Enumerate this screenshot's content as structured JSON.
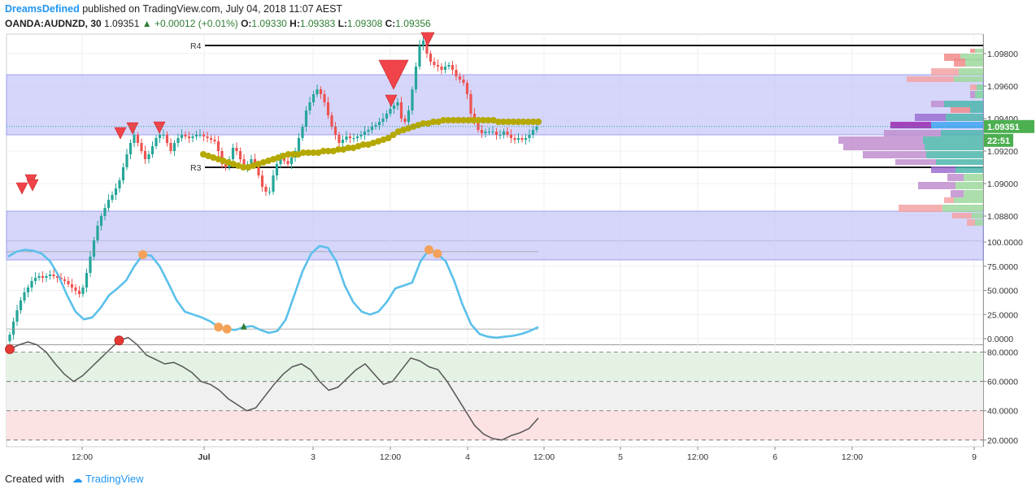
{
  "header": {
    "author": "DreamsDefined",
    "published_text": "published on TradingView.com, July 04, 2018 11:07 AEST",
    "symbol": "OANDA:AUDNZD, 30",
    "last": "1.09351",
    "change": "+0.00012 (+0.01%)",
    "open_label": "O:",
    "open": "1.09330",
    "high_label": "H:",
    "high": "1.09383",
    "low_label": "L:",
    "low": "1.09308",
    "close_label": "C:",
    "close": "1.09356"
  },
  "footer": {
    "created_with": "Created with",
    "brand": "TradingView"
  },
  "colors": {
    "up": "#26a69a",
    "down": "#ef5350",
    "zone": "#c8c8fa",
    "ma": "#b5a800",
    "stoch": "#5bc0eb",
    "osc": "#555555",
    "marker_orange": "#f4a259",
    "marker_red": "#e53935",
    "current_price_bg": "#4caf50"
  },
  "chart_data": [
    {
      "type": "line",
      "title": "",
      "price_axis": {
        "ticks": [
          "1.09800",
          "1.09600",
          "1.09400",
          "1.09200",
          "1.09000",
          "1.08800"
        ],
        "ylim": [
          1.0865,
          1.0992
        ]
      },
      "time_axis": {
        "ticks": [
          "12:00",
          "Jul",
          "3",
          "12:00",
          "4",
          "12:00",
          "5",
          "12:00",
          "6",
          "12:00",
          "9"
        ]
      },
      "current_price": "1.09351",
      "countdown": "22:51",
      "levels": [
        {
          "label": "R4",
          "value": 1.0985
        },
        {
          "label": "R3",
          "value": 1.091
        }
      ],
      "zones": [
        {
          "from": 1.093,
          "to": 1.0967
        },
        {
          "from": 1.0853,
          "to": 1.0883
        }
      ],
      "close_series": [
        1.0807,
        1.0815,
        1.0822,
        1.0828,
        1.0833,
        1.0836,
        1.084,
        1.0842,
        1.0843,
        1.0842,
        1.0843,
        1.0844,
        1.0843,
        1.0842,
        1.0841,
        1.084,
        1.0838,
        1.0836,
        1.0834,
        1.0832,
        1.0836,
        1.0845,
        1.0855,
        1.0865,
        1.0874,
        1.088,
        1.0885,
        1.089,
        1.0893,
        1.0897,
        1.0902,
        1.091,
        1.0918,
        1.0925,
        1.093,
        1.0925,
        1.092,
        1.0915,
        1.0918,
        1.0923,
        1.0928,
        1.093,
        1.093,
        1.0925,
        1.092,
        1.0925,
        1.0928,
        1.093,
        1.0929,
        1.0928,
        1.0929,
        1.093,
        1.093,
        1.0929,
        1.0928,
        1.0927,
        1.0926,
        1.092,
        1.0912,
        1.091,
        1.0915,
        1.0922,
        1.092,
        1.0915,
        1.091,
        1.0912,
        1.0915,
        1.0912,
        1.0905,
        1.0898,
        1.0895,
        1.0895,
        1.0905,
        1.0912,
        1.0916,
        1.0914,
        1.0912,
        1.0916,
        1.092,
        1.0928,
        1.0935,
        1.0945,
        1.095,
        1.0955,
        1.0958,
        1.0955,
        1.095,
        1.0942,
        1.0935,
        1.093,
        1.0925,
        1.0927,
        1.0929,
        1.0928,
        1.0928,
        1.0929,
        1.093,
        1.0932,
        1.0933,
        1.0935,
        1.0936,
        1.0938,
        1.094,
        1.0943,
        1.0946,
        1.0948,
        1.095,
        1.094,
        1.0938,
        1.0945,
        1.0958,
        1.0972,
        1.0985,
        1.0988,
        1.098,
        1.0975,
        1.0973,
        1.0972,
        1.097,
        1.0972,
        1.0973,
        1.097,
        1.0966,
        1.0964,
        1.0962,
        1.0955,
        1.0943,
        1.0938,
        1.0933,
        1.0931,
        1.0932,
        1.0932,
        1.0932,
        1.093,
        1.093,
        1.0932,
        1.093,
        1.0928,
        1.0927,
        1.0928,
        1.0927,
        1.0928,
        1.093,
        1.0933,
        1.0935
      ],
      "ma_series": [
        1.0918,
        1.0917,
        1.0916,
        1.0915,
        1.0914,
        1.0913,
        1.0912,
        1.0911,
        1.091,
        1.091,
        1.0911,
        1.0912,
        1.0913,
        1.0914,
        1.0915,
        1.0916,
        1.0917,
        1.0918,
        1.0918,
        1.0918,
        1.0919,
        1.0919,
        1.0919,
        1.0919,
        1.092,
        1.092,
        1.092,
        1.0921,
        1.0921,
        1.0922,
        1.0922,
        1.0923,
        1.0924,
        1.0924,
        1.0925,
        1.0926,
        1.0927,
        1.0928,
        1.093,
        1.0932,
        1.0933,
        1.0934,
        1.0935,
        1.0936,
        1.0937,
        1.0937,
        1.0938,
        1.0938,
        1.0939,
        1.0939,
        1.0939,
        1.0939,
        1.0939,
        1.0939,
        1.0939,
        1.0939,
        1.0939,
        1.0939,
        1.0939,
        1.0938,
        1.0938,
        1.0938,
        1.0938,
        1.0938,
        1.0938,
        1.0938,
        1.0938,
        1.0938
      ],
      "volume_profile_note": "horizontal volume histogram at right edge"
    },
    {
      "type": "line",
      "title": "",
      "yticks": [
        "100.0000",
        "75.0000",
        "50.0000",
        "25.0000",
        "0.0000"
      ],
      "ylim": [
        0,
        100
      ],
      "guide_levels": [
        90,
        10
      ],
      "values": [
        85,
        90,
        92,
        91,
        88,
        80,
        65,
        45,
        28,
        20,
        22,
        32,
        45,
        52,
        60,
        75,
        87,
        86,
        75,
        58,
        40,
        28,
        25,
        22,
        18,
        12,
        10,
        9,
        12,
        13,
        9,
        6,
        8,
        20,
        45,
        70,
        88,
        96,
        94,
        80,
        55,
        38,
        28,
        25,
        28,
        38,
        52,
        55,
        58,
        80,
        92,
        88,
        80,
        60,
        35,
        15,
        5,
        2,
        1,
        2,
        3,
        5,
        8,
        12
      ],
      "markers": [
        {
          "index": 16,
          "kind": "overbought"
        },
        {
          "index": 25,
          "kind": "oversold"
        },
        {
          "index": 26,
          "kind": "oversold"
        },
        {
          "index": 28,
          "kind": "cross-up"
        },
        {
          "index": 50,
          "kind": "overbought"
        },
        {
          "index": 51,
          "kind": "overbought"
        }
      ]
    },
    {
      "type": "line",
      "title": "",
      "yticks": [
        "80.0000",
        "60.0000",
        "40.0000",
        "20.0000"
      ],
      "ylim": [
        16,
        82
      ],
      "bands": [
        {
          "from": 60,
          "to": 80,
          "color": "#e4f2e4"
        },
        {
          "from": 40,
          "to": 60,
          "color": "#f0f0f0"
        },
        {
          "from": 20,
          "to": 40,
          "color": "#fde2e4"
        }
      ],
      "values": [
        82,
        85,
        87,
        85,
        80,
        72,
        65,
        60,
        64,
        70,
        76,
        82,
        88,
        90,
        85,
        78,
        75,
        72,
        73,
        70,
        66,
        60,
        58,
        54,
        48,
        44,
        40,
        42,
        50,
        58,
        65,
        70,
        72,
        68,
        60,
        54,
        56,
        62,
        68,
        72,
        65,
        58,
        60,
        68,
        76,
        74,
        70,
        68,
        60,
        50,
        40,
        30,
        24,
        21,
        20,
        23,
        25,
        28,
        35
      ],
      "markers": [
        {
          "index": 0,
          "kind": "red"
        },
        {
          "index": 12,
          "kind": "red"
        }
      ]
    }
  ]
}
